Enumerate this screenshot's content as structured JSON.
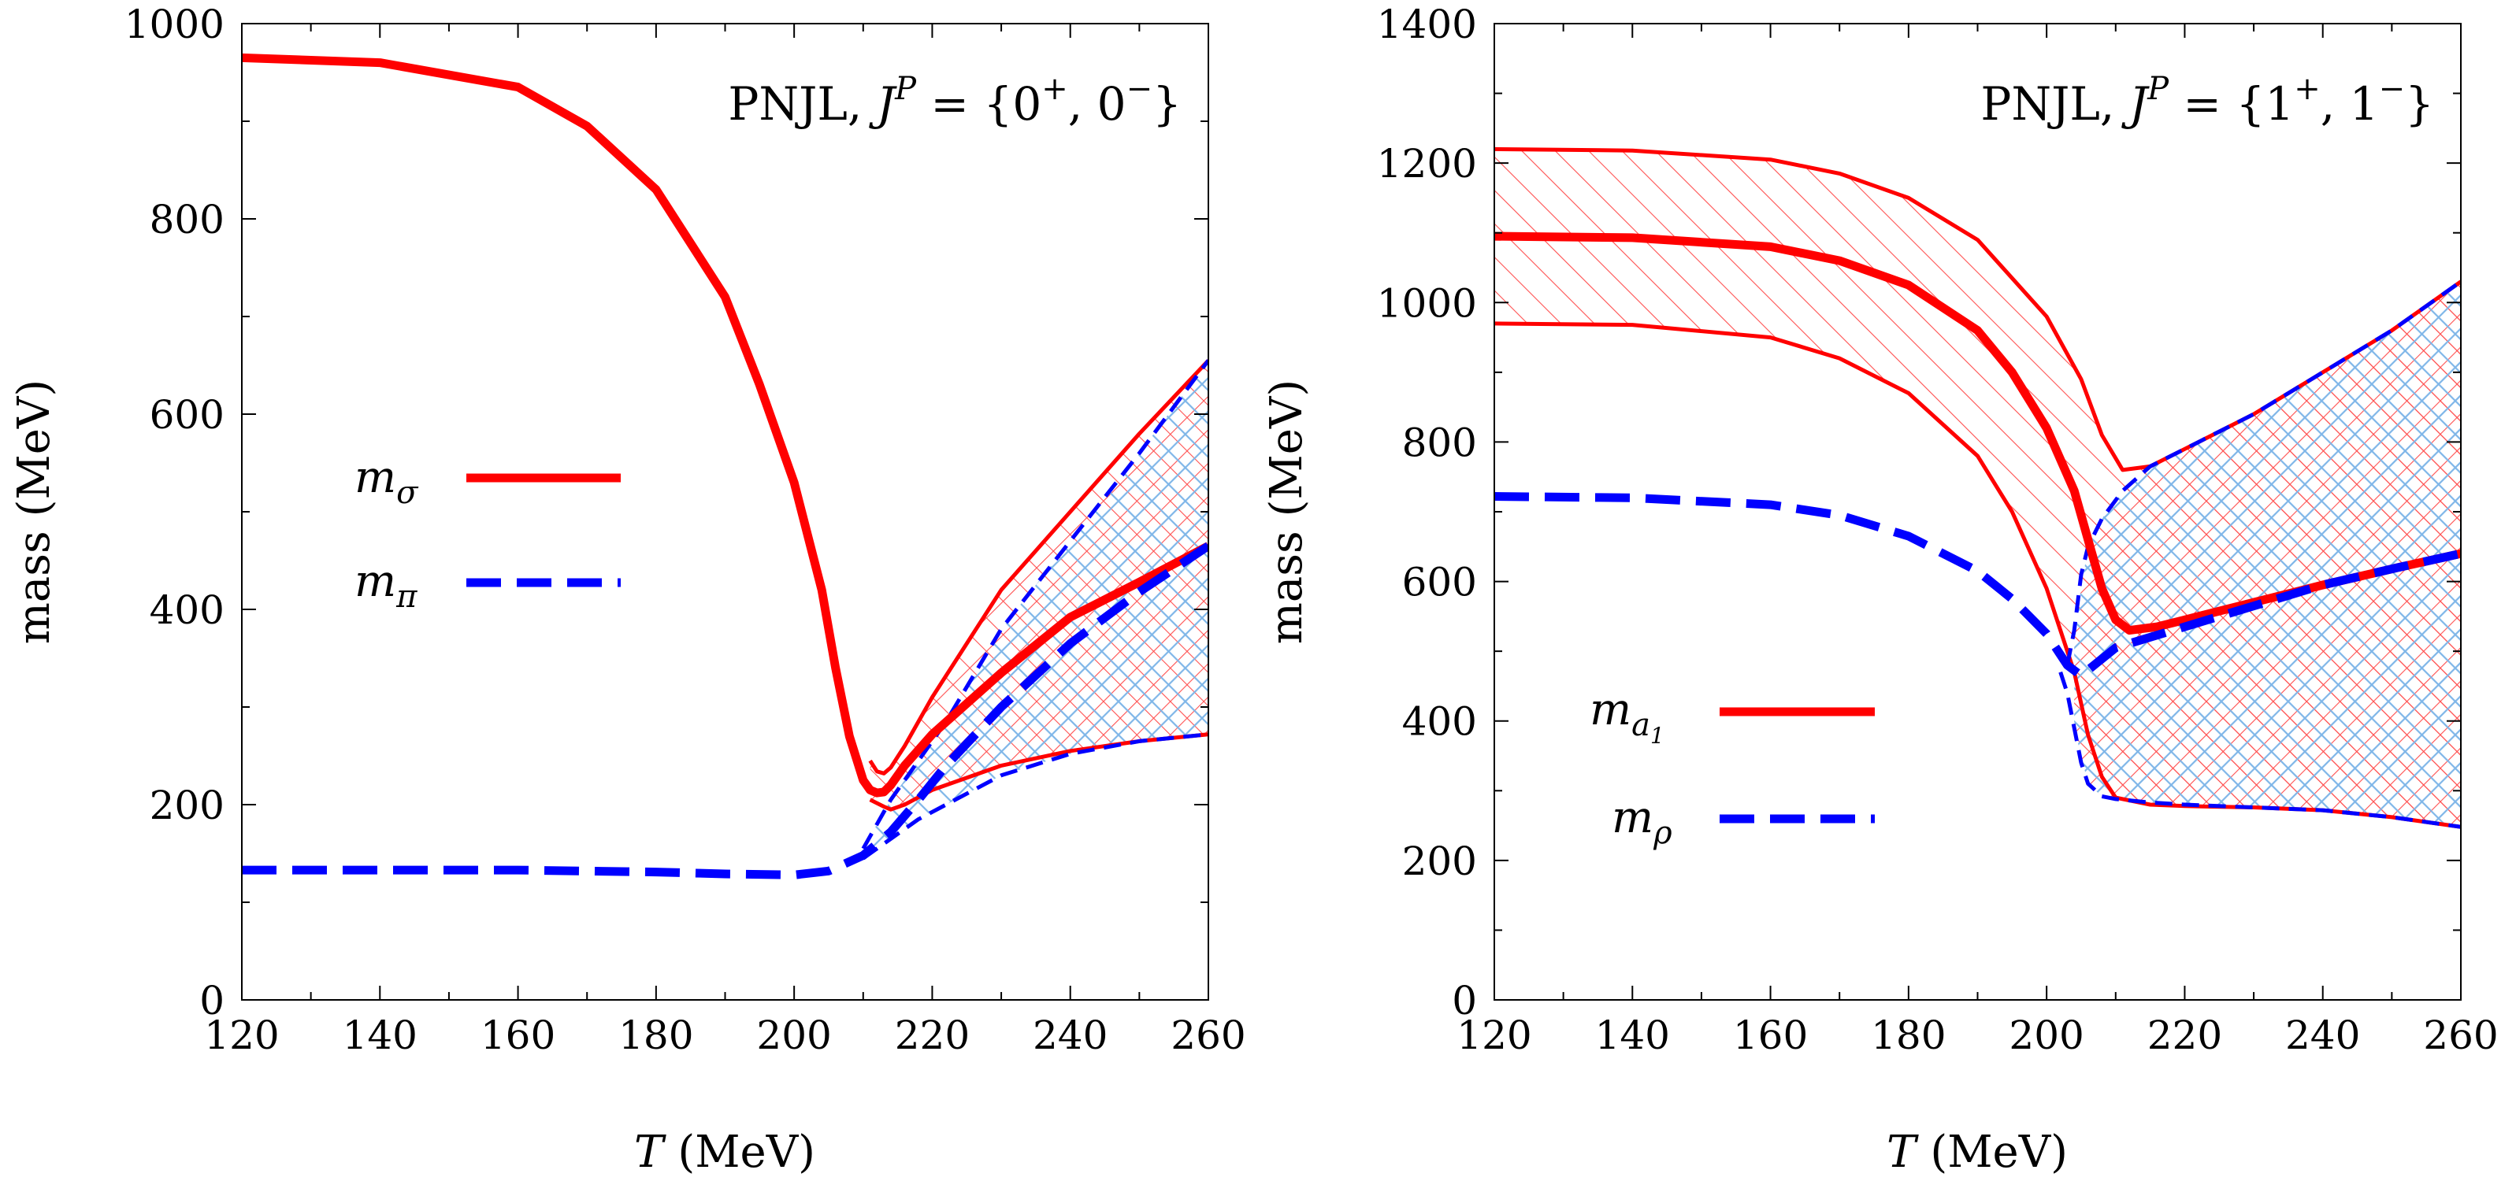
{
  "chart_data": [
    {
      "type": "line",
      "title": "PNJL, J^P = {0^+, 0^-}",
      "title_parts": {
        "prefix": "PNJL, ",
        "J": "J",
        "P": "P",
        "eq": " = {0",
        "p1": "+",
        "comma": ", 0",
        "p2": "−",
        "close": "}"
      },
      "xlabel": {
        "T": "T",
        "unit": "(MeV)"
      },
      "ylabel": "mass (MeV)",
      "xlim": [
        120,
        260
      ],
      "ylim": [
        0,
        1000
      ],
      "xticks": [
        "120",
        "140",
        "160",
        "180",
        "200",
        "220",
        "240",
        "260"
      ],
      "yticks": [
        "0",
        "200",
        "400",
        "600",
        "800",
        "1000"
      ],
      "legend_placement": "center-left",
      "series": [
        {
          "name": "m_sigma",
          "label_main": "m",
          "label_sub": "σ",
          "color": "#ff0000",
          "style": "solid",
          "role": "central",
          "x": [
            120,
            140,
            160,
            170,
            180,
            190,
            195,
            200,
            204,
            206,
            208,
            210,
            211,
            212,
            213,
            214,
            216,
            220,
            230,
            240,
            250,
            260
          ],
          "y": [
            965,
            960,
            935,
            895,
            830,
            720,
            630,
            530,
            420,
            340,
            270,
            225,
            215,
            212,
            213,
            220,
            240,
            272,
            335,
            392,
            428,
            465
          ]
        },
        {
          "name": "m_sigma_upper",
          "color": "#ff0000",
          "style": "solid",
          "role": "band",
          "x": [
            211,
            212,
            213,
            214,
            216,
            220,
            230,
            240,
            250,
            260
          ],
          "y": [
            245,
            234,
            232,
            238,
            260,
            310,
            420,
            500,
            580,
            655
          ]
        },
        {
          "name": "m_sigma_lower",
          "color": "#ff0000",
          "style": "solid",
          "role": "band",
          "x": [
            211,
            213,
            214,
            216,
            220,
            230,
            240,
            250,
            260
          ],
          "y": [
            205,
            198,
            195,
            200,
            215,
            240,
            255,
            265,
            272
          ]
        },
        {
          "name": "m_pi",
          "label_main": "m",
          "label_sub": "π",
          "color": "#0000ff",
          "style": "dashed",
          "role": "central",
          "x": [
            120,
            140,
            160,
            180,
            190,
            200,
            205,
            210,
            214,
            218,
            222,
            230,
            240,
            250,
            260
          ],
          "y": [
            133,
            133,
            133,
            131,
            129,
            128,
            132,
            148,
            172,
            205,
            240,
            300,
            365,
            418,
            465
          ]
        },
        {
          "name": "m_pi_upper",
          "color": "#0000ff",
          "style": "dashed",
          "role": "band",
          "x": [
            210,
            214,
            218,
            222,
            230,
            240,
            250,
            260
          ],
          "y": [
            155,
            205,
            245,
            285,
            380,
            470,
            560,
            655
          ]
        },
        {
          "name": "m_pi_lower",
          "color": "#0000ff",
          "style": "dashed",
          "role": "band",
          "x": [
            210,
            214,
            218,
            222,
            230,
            240,
            250,
            260
          ],
          "y": [
            145,
            165,
            185,
            200,
            230,
            252,
            265,
            272
          ]
        }
      ],
      "bands": [
        {
          "color": "#ff0000",
          "hatch": "both",
          "upper": {
            "x": [
              211,
              213,
              216,
              220,
              230,
              240,
              250,
              260
            ],
            "y": [
              245,
              232,
              260,
              310,
              420,
              500,
              580,
              655
            ]
          },
          "lower": {
            "x": [
              211,
              213,
              216,
              220,
              230,
              240,
              250,
              260
            ],
            "y": [
              205,
              198,
              200,
              215,
              240,
              255,
              265,
              272
            ]
          }
        },
        {
          "color": "#4a90d9",
          "hatch": "both",
          "upper": {
            "x": [
              210,
              214,
              218,
              222,
              230,
              240,
              250,
              260
            ],
            "y": [
              155,
              205,
              245,
              285,
              380,
              470,
              560,
              655
            ]
          },
          "lower": {
            "x": [
              210,
              214,
              218,
              222,
              230,
              240,
              250,
              260
            ],
            "y": [
              145,
              165,
              185,
              200,
              230,
              252,
              265,
              272
            ]
          }
        }
      ]
    },
    {
      "type": "line",
      "title": "PNJL, J^P = {1^+, 1^-}",
      "title_parts": {
        "prefix": "PNJL, ",
        "J": "J",
        "P": "P",
        "eq": " = {1",
        "p1": "+",
        "comma": ", 1",
        "p2": "−",
        "close": "}"
      },
      "xlabel": {
        "T": "T",
        "unit": "(MeV)"
      },
      "ylabel": "mass (MeV)",
      "xlim": [
        120,
        260
      ],
      "ylim": [
        0,
        1400
      ],
      "xticks": [
        "120",
        "140",
        "160",
        "180",
        "200",
        "220",
        "240",
        "260"
      ],
      "yticks": [
        "0",
        "200",
        "400",
        "600",
        "800",
        "1000",
        "1200",
        "1400"
      ],
      "legend_placement": "bottom-left",
      "series": [
        {
          "name": "m_a1",
          "label_main": "m",
          "label_sub": "a",
          "label_subsub": "1",
          "color": "#ff0000",
          "style": "solid",
          "role": "central",
          "x": [
            120,
            140,
            160,
            170,
            180,
            190,
            195,
            200,
            204,
            206,
            208,
            210,
            212,
            216,
            220,
            230,
            240,
            250,
            260
          ],
          "y": [
            1095,
            1093,
            1080,
            1060,
            1025,
            960,
            900,
            820,
            730,
            660,
            590,
            545,
            530,
            535,
            545,
            570,
            595,
            618,
            640
          ]
        },
        {
          "name": "m_a1_upper",
          "color": "#ff0000",
          "style": "solid",
          "role": "band",
          "x": [
            120,
            140,
            160,
            170,
            180,
            190,
            200,
            205,
            208,
            211,
            215,
            220,
            230,
            240,
            250,
            260
          ],
          "y": [
            1220,
            1218,
            1205,
            1185,
            1150,
            1090,
            980,
            890,
            810,
            760,
            765,
            790,
            840,
            900,
            960,
            1030
          ]
        },
        {
          "name": "m_a1_lower",
          "color": "#ff0000",
          "style": "solid",
          "role": "band",
          "x": [
            120,
            140,
            160,
            170,
            180,
            190,
            195,
            200,
            204,
            206,
            208,
            210,
            215,
            220,
            230,
            240,
            250,
            260
          ],
          "y": [
            970,
            968,
            950,
            920,
            870,
            780,
            700,
            590,
            470,
            380,
            320,
            290,
            280,
            278,
            276,
            272,
            262,
            248
          ]
        },
        {
          "name": "m_rho",
          "label_main": "m",
          "label_sub": "ρ",
          "color": "#0000ff",
          "style": "dashed",
          "role": "central",
          "x": [
            120,
            140,
            160,
            170,
            180,
            190,
            195,
            200,
            203,
            205,
            210,
            220,
            230,
            240,
            250,
            260
          ],
          "y": [
            722,
            720,
            710,
            695,
            665,
            615,
            575,
            525,
            480,
            465,
            505,
            535,
            565,
            595,
            618,
            640
          ]
        },
        {
          "name": "m_rho_upper",
          "color": "#0000ff",
          "style": "dashed",
          "role": "band",
          "x": [
            203,
            204,
            205,
            206,
            208,
            211,
            215,
            220,
            230,
            240,
            250,
            260
          ],
          "y": [
            480,
            530,
            610,
            650,
            690,
            730,
            765,
            790,
            840,
            900,
            960,
            1030
          ]
        },
        {
          "name": "m_rho_lower",
          "color": "#0000ff",
          "style": "dashed",
          "role": "band",
          "x": [
            202,
            203,
            204,
            205,
            206,
            208,
            210,
            215,
            220,
            230,
            240,
            250,
            260
          ],
          "y": [
            470,
            440,
            390,
            340,
            310,
            292,
            288,
            283,
            280,
            276,
            272,
            262,
            248
          ]
        }
      ],
      "bands": [
        {
          "color": "#ff0000",
          "hatch": "single",
          "upper": {
            "x": [
              120,
              140,
              160,
              170,
              180,
              190,
              200,
              205,
              208,
              211,
              215,
              220,
              230,
              240,
              250,
              260
            ],
            "y": [
              1220,
              1218,
              1205,
              1185,
              1150,
              1090,
              980,
              890,
              810,
              760,
              765,
              790,
              840,
              900,
              960,
              1030
            ]
          },
          "lower": {
            "x": [
              120,
              140,
              160,
              170,
              180,
              190,
              195,
              200,
              204,
              206,
              208,
              210,
              215,
              220,
              230,
              240,
              250,
              260
            ],
            "y": [
              970,
              968,
              950,
              920,
              870,
              780,
              700,
              590,
              470,
              380,
              320,
              290,
              280,
              278,
              276,
              272,
              262,
              248
            ]
          }
        },
        {
          "color": "#ff0000",
          "hatch": "cross",
          "upper": {
            "x": [
              204,
              206,
              208,
              211,
              215,
              220,
              230,
              240,
              250,
              260
            ],
            "y": [
              530,
              650,
              690,
              730,
              765,
              790,
              840,
              900,
              960,
              1030
            ]
          },
          "lower": {
            "x": [
              204,
              206,
              208,
              211,
              215,
              220,
              230,
              240,
              250,
              260
            ],
            "y": [
              390,
              310,
              292,
              288,
              283,
              280,
              276,
              272,
              262,
              248
            ]
          }
        },
        {
          "color": "#4a90d9",
          "hatch": "cross",
          "upper": {
            "x": [
              204,
              206,
              208,
              211,
              215,
              220,
              230,
              240,
              250,
              260
            ],
            "y": [
              530,
              650,
              690,
              730,
              765,
              790,
              840,
              900,
              960,
              1030
            ]
          },
          "lower": {
            "x": [
              204,
              206,
              208,
              211,
              215,
              220,
              230,
              240,
              250,
              260
            ],
            "y": [
              390,
              310,
              292,
              288,
              283,
              280,
              276,
              272,
              262,
              248
            ]
          }
        }
      ]
    }
  ]
}
